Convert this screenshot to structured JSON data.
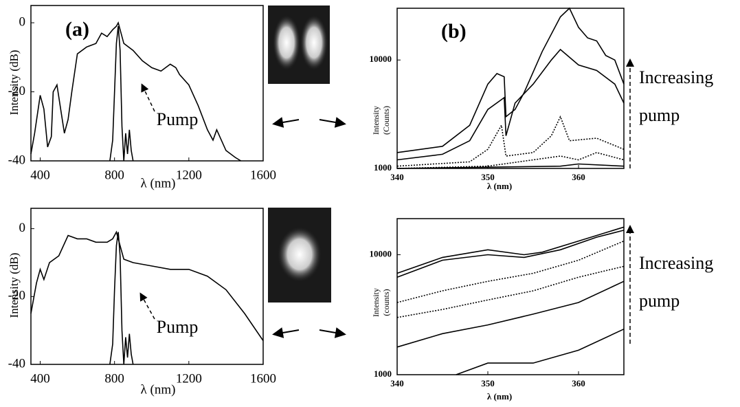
{
  "chart_data": [
    {
      "type": "line",
      "panel_label": "(a)",
      "x_label": "λ (nm)",
      "y_label": [
        "Intensity (dB)"
      ],
      "xlim": [
        350,
        1600
      ],
      "ylim": [
        -40,
        5
      ],
      "xticks": [
        400,
        800,
        1200,
        1600
      ],
      "yticks": [
        -40,
        -20,
        0
      ],
      "log_y": false,
      "annotation": "Pump",
      "series": [
        {
          "color": "#000",
          "line_style": "solid",
          "x": [
            350,
            370,
            400,
            420,
            440,
            460,
            470,
            490,
            510,
            530,
            550,
            570,
            600,
            650,
            700,
            730,
            760,
            790,
            810,
            820,
            850,
            900,
            950,
            1000,
            1050,
            1100,
            1130,
            1150,
            1200,
            1250,
            1300,
            1330,
            1350,
            1400,
            1450,
            1480
          ],
          "values": [
            -38,
            -32,
            -21,
            -25,
            -36,
            -33,
            -20,
            -18,
            -25,
            -32,
            -28,
            -20,
            -9,
            -7,
            -6,
            -3,
            -4,
            -2,
            -1,
            0,
            -6,
            -8,
            -11,
            -13,
            -14,
            -12,
            -13,
            -15,
            -18,
            -24,
            -31,
            -34,
            -31,
            -37,
            -39,
            -40
          ]
        },
        {
          "color": "#000",
          "line_style": "solid",
          "x": [
            775,
            790,
            800,
            810,
            820,
            830,
            840,
            850,
            860,
            870,
            880,
            890,
            900
          ],
          "values": [
            -40,
            -34,
            -20,
            -6,
            -1,
            -8,
            -30,
            -40,
            -32,
            -38,
            -31,
            -37,
            -40
          ]
        }
      ]
    },
    {
      "type": "line",
      "panel_label": "(b)",
      "x_label": "λ (nm)",
      "y_label": [
        "Intensity",
        "(Counts)"
      ],
      "xlim": [
        340,
        365
      ],
      "ylim": [
        1000,
        30000
      ],
      "xticks": [
        340,
        350,
        360
      ],
      "yticks": [
        1000,
        10000
      ],
      "log_y": true,
      "annotation": [
        "Increasing",
        "pump"
      ],
      "series": [
        {
          "color": "#000",
          "line_style": "solid",
          "x": [
            340,
            345,
            348,
            350,
            351,
            351.8,
            352,
            353,
            354,
            356,
            358,
            359,
            360,
            361,
            362,
            363,
            364,
            365
          ],
          "values": [
            1400,
            1600,
            2500,
            6000,
            7500,
            7000,
            3000,
            3500,
            5000,
            12000,
            25000,
            30000,
            20000,
            16000,
            15000,
            11000,
            10000,
            6000
          ]
        },
        {
          "color": "#000",
          "line_style": "solid",
          "x": [
            340,
            345,
            348,
            350,
            351.8,
            352,
            353,
            355,
            357,
            358,
            360,
            362,
            364,
            365
          ],
          "values": [
            1200,
            1350,
            1800,
            3500,
            4500,
            2000,
            4000,
            6000,
            10000,
            12500,
            9000,
            8000,
            6000,
            4000
          ]
        },
        {
          "color": "#000",
          "line_style": "dotted",
          "x": [
            340,
            348,
            350,
            351.5,
            352,
            355,
            357,
            358,
            359,
            362,
            365
          ],
          "values": [
            1050,
            1150,
            1500,
            2500,
            1300,
            1400,
            2000,
            3000,
            1800,
            1900,
            1500
          ]
        },
        {
          "color": "#000",
          "line_style": "dotted",
          "x": [
            340,
            350,
            358,
            360,
            362,
            365
          ],
          "values": [
            1000,
            1050,
            1300,
            1200,
            1400,
            1200
          ]
        },
        {
          "color": "#000",
          "line_style": "solid",
          "x": [
            340,
            358,
            360,
            365
          ],
          "values": [
            1000,
            1050,
            1100,
            1050
          ]
        }
      ]
    },
    {
      "type": "line",
      "x_label": "λ (nm)",
      "y_label": [
        "Intensity (dB)"
      ],
      "xlim": [
        350,
        1600
      ],
      "ylim": [
        -40,
        6
      ],
      "xticks": [
        400,
        800,
        1200,
        1600
      ],
      "yticks": [
        -40,
        -20,
        0
      ],
      "log_y": false,
      "annotation": "Pump",
      "series": [
        {
          "color": "#000",
          "line_style": "solid",
          "x": [
            350,
            380,
            400,
            420,
            450,
            500,
            550,
            600,
            650,
            700,
            760,
            790,
            810,
            830,
            850,
            900,
            1000,
            1100,
            1200,
            1300,
            1400,
            1500,
            1600
          ],
          "values": [
            -25,
            -16,
            -12,
            -15,
            -10,
            -8,
            -2,
            -3,
            -3,
            -4,
            -4,
            -3,
            -1,
            -5,
            -9,
            -10,
            -11,
            -12,
            -12,
            -14,
            -18,
            -25,
            -33
          ]
        },
        {
          "color": "#000",
          "line_style": "solid",
          "x": [
            775,
            790,
            800,
            810,
            820,
            830,
            840,
            850,
            860,
            870,
            880,
            890,
            900
          ],
          "values": [
            -40,
            -34,
            -18,
            -5,
            -1,
            -8,
            -30,
            -40,
            -32,
            -38,
            -31,
            -37,
            -40
          ]
        }
      ]
    },
    {
      "type": "line",
      "x_label": "λ (nm)",
      "y_label": [
        "Intensity",
        "(counts)"
      ],
      "xlim": [
        340,
        365
      ],
      "ylim": [
        1000,
        20000
      ],
      "xticks": [
        340,
        350,
        360
      ],
      "yticks": [
        1000,
        10000
      ],
      "log_y": true,
      "annotation": [
        "Increasing",
        "pump"
      ],
      "series": [
        {
          "color": "#000",
          "line_style": "solid",
          "x": [
            340,
            345,
            350,
            354,
            356,
            360,
            365
          ],
          "values": [
            7000,
            9500,
            11000,
            10000,
            10500,
            13000,
            17000
          ]
        },
        {
          "color": "#000",
          "line_style": "solid",
          "x": [
            340,
            345,
            350,
            354,
            358,
            362,
            365
          ],
          "values": [
            6500,
            9000,
            10000,
            9500,
            11000,
            14000,
            16000
          ]
        },
        {
          "color": "#000",
          "line_style": "dotted",
          "x": [
            340,
            345,
            350,
            355,
            360,
            365
          ],
          "values": [
            4000,
            5000,
            6000,
            7000,
            9000,
            13000
          ]
        },
        {
          "color": "#000",
          "line_style": "dotted",
          "x": [
            340,
            345,
            350,
            355,
            360,
            365
          ],
          "values": [
            3000,
            3500,
            4200,
            5000,
            6500,
            8000
          ]
        },
        {
          "color": "#000",
          "line_style": "solid",
          "x": [
            340,
            345,
            350,
            355,
            360,
            365
          ],
          "values": [
            1700,
            2200,
            2600,
            3200,
            4000,
            6000
          ]
        },
        {
          "color": "#000",
          "line_style": "solid",
          "x": [
            346.5,
            350,
            355,
            360,
            365
          ],
          "values": [
            1000,
            1250,
            1250,
            1600,
            2400
          ]
        }
      ]
    }
  ]
}
